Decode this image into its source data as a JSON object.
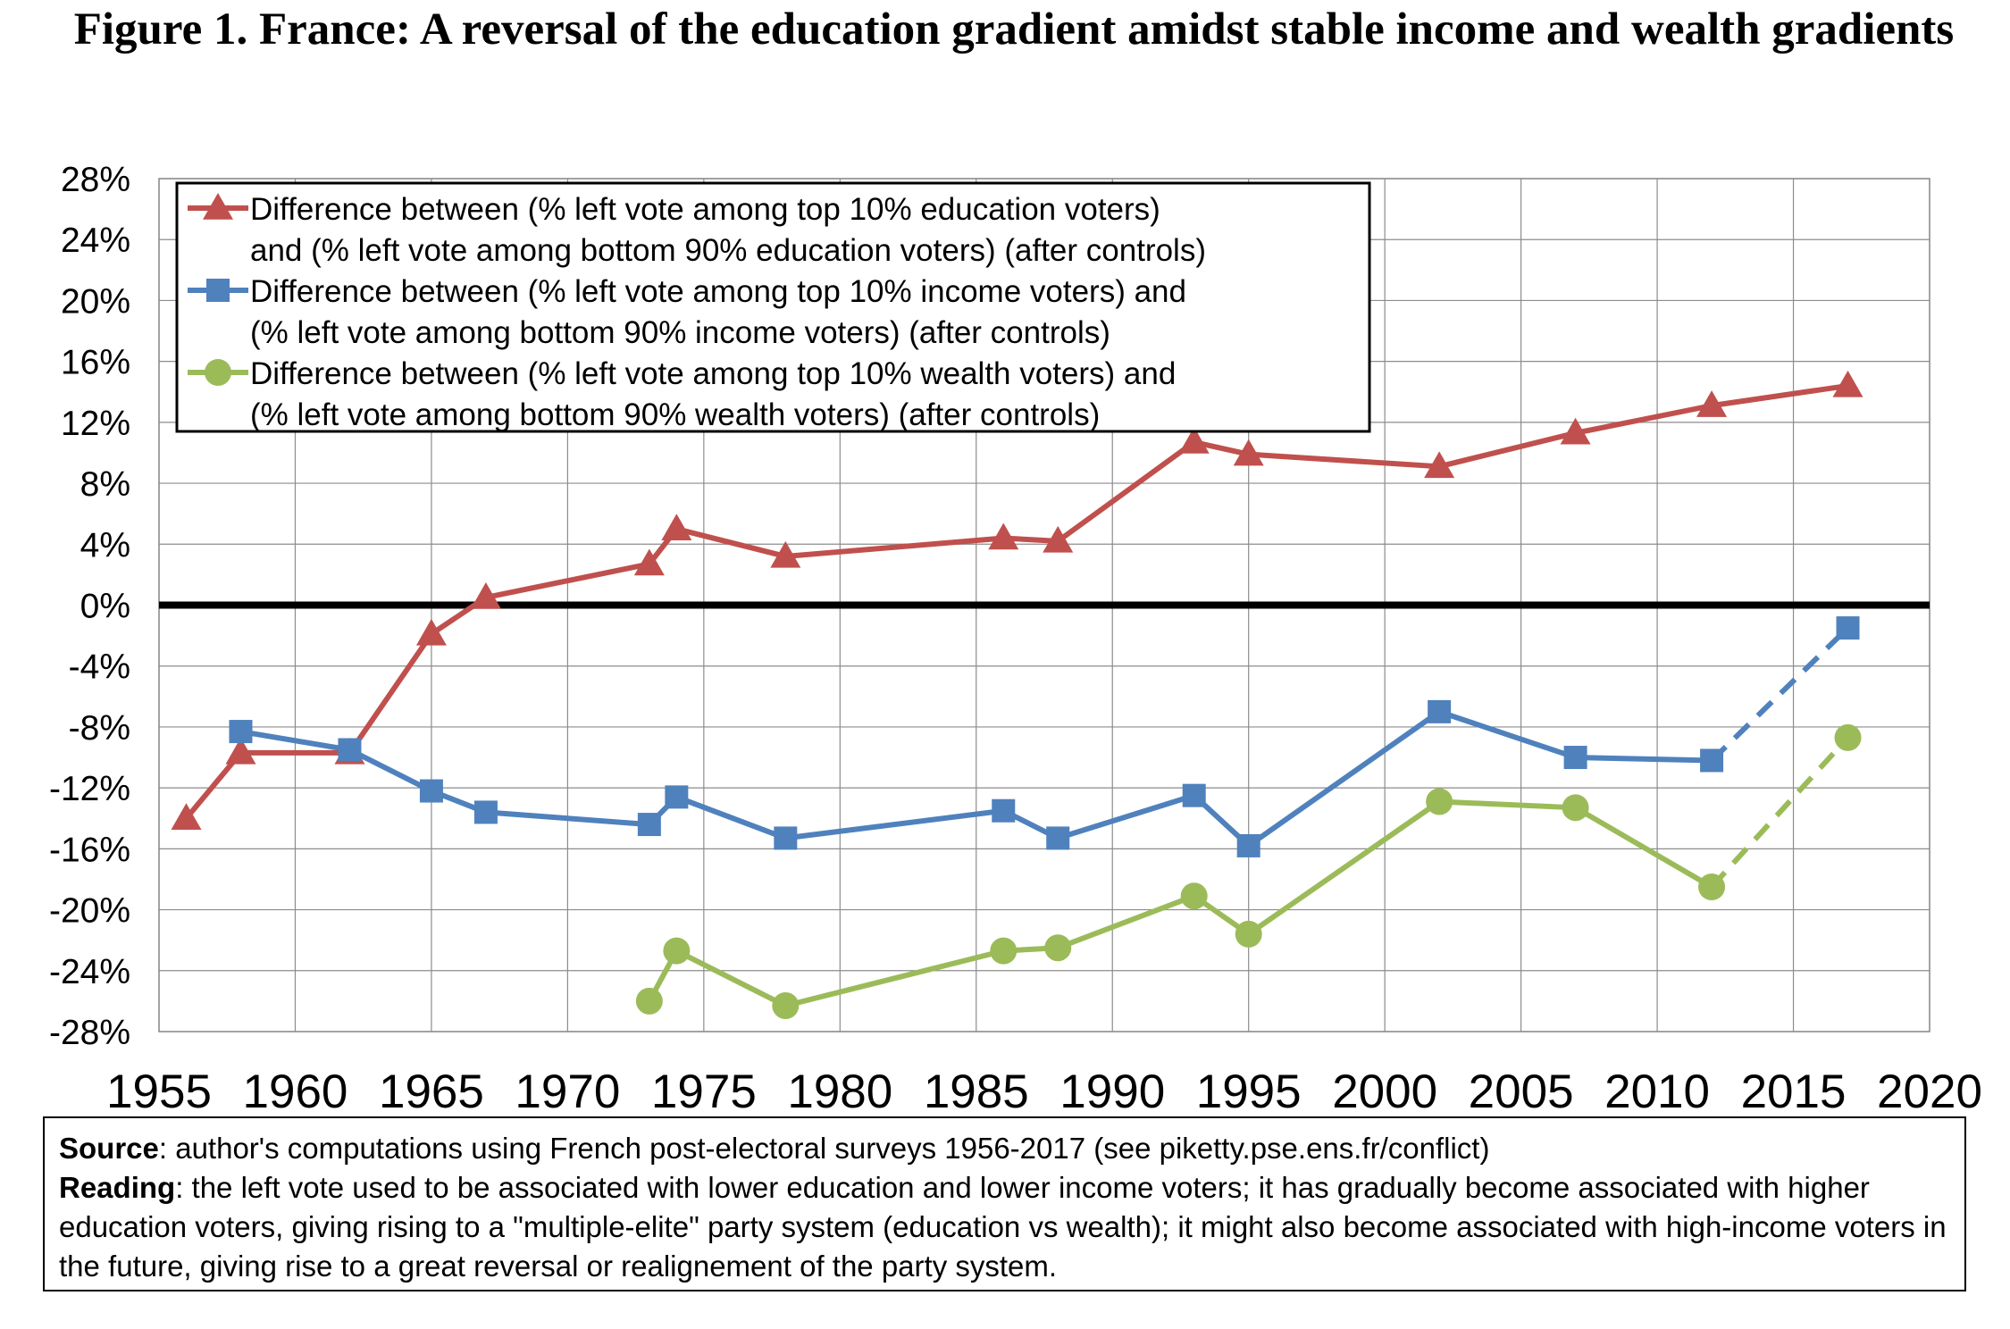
{
  "title": "Figure 1. France: A reversal of the education gradient amidst stable income and wealth gradients",
  "chart_data": {
    "type": "line",
    "xlim": [
      1955,
      2020
    ],
    "ylim": [
      -0.28,
      0.28
    ],
    "x_ticks": [
      "1955",
      "1960",
      "1965",
      "1970",
      "1975",
      "1980",
      "1985",
      "1990",
      "1995",
      "2000",
      "2005",
      "2010",
      "2015",
      "2020"
    ],
    "y_ticks": [
      "28%",
      "24%",
      "20%",
      "16%",
      "12%",
      "8%",
      "4%",
      "0%",
      "-4%",
      "-8%",
      "-12%",
      "-16%",
      "-20%",
      "-24%",
      "-28%"
    ],
    "grid": true,
    "legend_position": "top-left",
    "series": [
      {
        "name": "Difference between (% left vote among top 10% education voters) and (% left vote among bottom 90% education voters) (after controls)",
        "legend_lines": [
          "Difference between (% left vote among top 10% education voters)",
          "and (% left vote among bottom 90% education voters) (after controls)"
        ],
        "color": "#c0504d",
        "marker": "triangle",
        "x": [
          1956,
          1958,
          1962,
          1965,
          1967,
          1973,
          1974,
          1978,
          1986,
          1988,
          1993,
          1995,
          2002,
          2007,
          2012,
          2017
        ],
        "y": [
          -0.14,
          -0.097,
          -0.097,
          -0.019,
          0.005,
          0.027,
          0.05,
          0.032,
          0.044,
          0.042,
          0.107,
          0.099,
          0.091,
          0.113,
          0.131,
          0.144
        ],
        "dashed_from": null
      },
      {
        "name": "Difference between (% left vote among top 10% income voters) and (% left vote among bottom 90% income voters) (after controls)",
        "legend_lines": [
          "Difference between (% left vote among top 10% income voters) and",
          "(% left vote among bottom 90% income voters) (after controls)"
        ],
        "color": "#4f81bd",
        "marker": "square",
        "x": [
          1958,
          1962,
          1965,
          1967,
          1973,
          1974,
          1978,
          1986,
          1988,
          1993,
          1995,
          2002,
          2007,
          2012,
          2017
        ],
        "y": [
          -0.083,
          -0.095,
          -0.122,
          -0.136,
          -0.144,
          -0.126,
          -0.153,
          -0.135,
          -0.153,
          -0.125,
          -0.158,
          -0.07,
          -0.1,
          -0.102,
          -0.015
        ],
        "dashed_from": 2012
      },
      {
        "name": "Difference between (% left vote among top 10% wealth voters) and (% left vote among bottom 90% wealth voters) (after controls)",
        "legend_lines": [
          "Difference between (% left vote among top 10% wealth voters) and",
          "(% left vote among bottom 90% wealth voters) (after controls)"
        ],
        "color": "#9bbb59",
        "marker": "circle",
        "x": [
          1973,
          1974,
          1978,
          1986,
          1988,
          1993,
          1995,
          2002,
          2007,
          2012,
          2017
        ],
        "y": [
          -0.26,
          -0.227,
          -0.263,
          -0.227,
          -0.225,
          -0.191,
          -0.216,
          -0.129,
          -0.133,
          -0.185,
          -0.087
        ],
        "dashed_from": 2012
      }
    ]
  },
  "note": {
    "source_label": "Source",
    "source_text": ": author's computations using French post-electoral surveys 1956-2017 (see piketty.pse.ens.fr/conflict)",
    "reading_label": "Reading",
    "reading_text": ": the left vote used to be associated with lower education and lower income voters; it has gradually become associated with higher education voters, giving rising to a \"multiple-elite\" party system (education vs wealth); it might also become associated with high-income voters in the future, giving rise to a great reversal or realignement of the party system."
  }
}
